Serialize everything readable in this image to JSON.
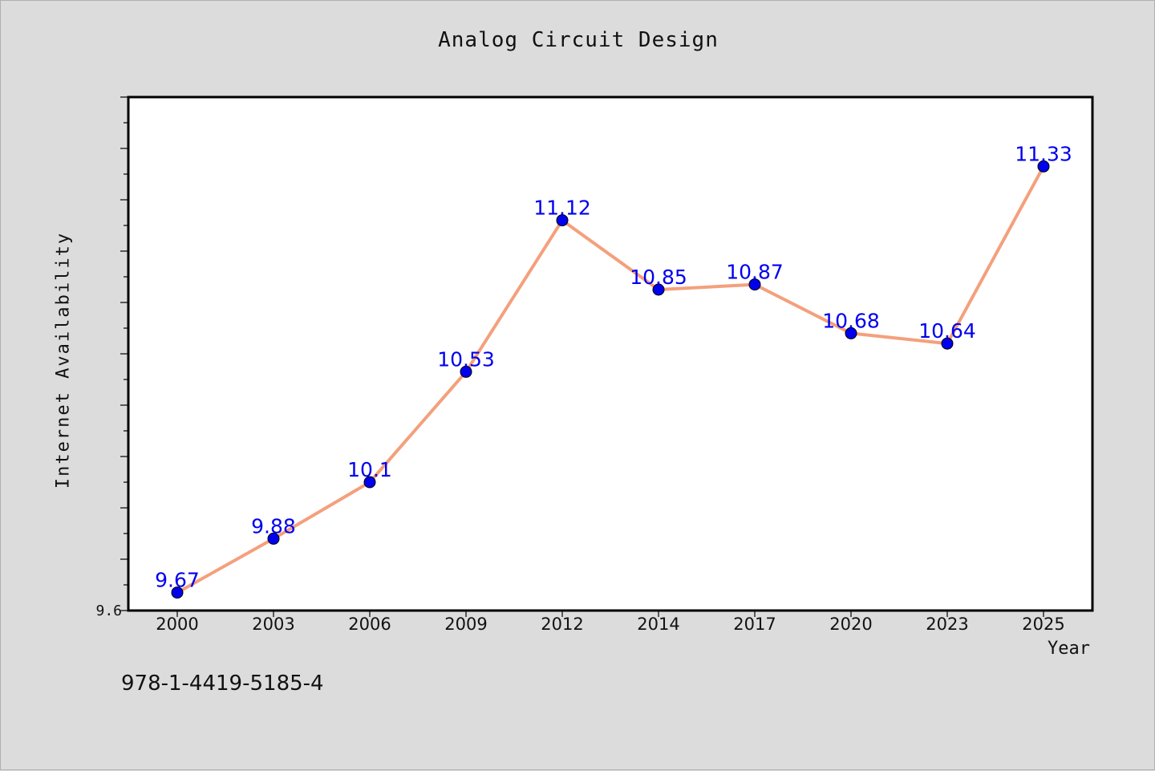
{
  "chart_data": {
    "type": "line",
    "title": "Analog Circuit Design",
    "xlabel": "Year",
    "ylabel": "Internet Availability",
    "x": [
      "2000",
      "2003",
      "2006",
      "2009",
      "2012",
      "2014",
      "2017",
      "2020",
      "2023",
      "2025"
    ],
    "series": [
      {
        "values": [
          9.67,
          9.88,
          10.1,
          10.53,
          11.12,
          10.85,
          10.87,
          10.68,
          10.64,
          11.33
        ],
        "labels": [
          "9.67",
          "9.88",
          "10.1",
          "10.53",
          "11.12",
          "10.85",
          "10.87",
          "10.68",
          "10.64",
          "11.33"
        ]
      }
    ],
    "ylim": [
      9.6,
      11.6
    ],
    "y_tick_labels": [
      "9.6"
    ],
    "grid": false,
    "legend": "none",
    "colors": {
      "line": "#f4a07c",
      "marker": "#0000ee",
      "data_label": "#0000ee",
      "plot_background": "#ffffff",
      "figure_background": "#dcdcdc"
    }
  },
  "footer": {
    "isbn": "978-1-4419-5185-4"
  }
}
